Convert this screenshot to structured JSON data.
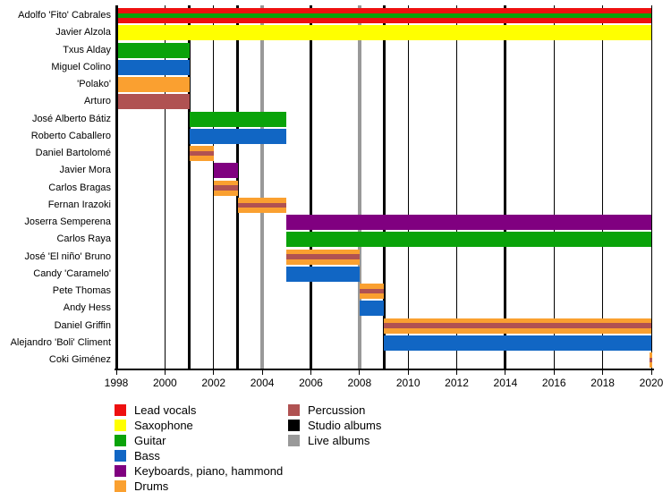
{
  "chart_data": {
    "type": "timeline-gantt",
    "description": "Band members timeline with album release markers",
    "x_axis": {
      "min_year": 1998,
      "max_year": 2020,
      "tick_years": [
        1998,
        2000,
        2002,
        2004,
        2006,
        2008,
        2010,
        2012,
        2014,
        2016,
        2018,
        2020
      ],
      "gridline_years": [
        2000,
        2002,
        2004,
        2006,
        2008,
        2010,
        2012,
        2014,
        2016,
        2018,
        2020
      ]
    },
    "rows": [
      {
        "label": "Adolfo 'Fito' Cabrales",
        "roles": [
          "Lead vocals",
          "Guitar"
        ],
        "bars": [
          {
            "start": 1998,
            "end": 2020,
            "color": "lead_vocals",
            "stripe": "guitar"
          }
        ]
      },
      {
        "label": "Javier Alzola",
        "roles": [
          "Saxophone"
        ],
        "bars": [
          {
            "start": 1998,
            "end": 2020,
            "color": "saxophone"
          }
        ]
      },
      {
        "label": "Txus Alday",
        "roles": [
          "Guitar"
        ],
        "bars": [
          {
            "start": 1998,
            "end": 2001,
            "color": "guitar"
          }
        ]
      },
      {
        "label": "Miguel Colino",
        "roles": [
          "Bass"
        ],
        "bars": [
          {
            "start": 1998,
            "end": 2001,
            "color": "bass"
          }
        ]
      },
      {
        "label": "'Polako'",
        "roles": [
          "Drums"
        ],
        "bars": [
          {
            "start": 1998,
            "end": 2001,
            "color": "drums"
          }
        ]
      },
      {
        "label": "Arturo",
        "roles": [
          "Percussion"
        ],
        "bars": [
          {
            "start": 1998,
            "end": 2001,
            "color": "percussion"
          }
        ]
      },
      {
        "label": "José Alberto Bátiz",
        "roles": [
          "Guitar"
        ],
        "bars": [
          {
            "start": 2001,
            "end": 2005,
            "color": "guitar"
          }
        ]
      },
      {
        "label": "Roberto Caballero",
        "roles": [
          "Bass"
        ],
        "bars": [
          {
            "start": 2001,
            "end": 2005,
            "color": "bass"
          }
        ]
      },
      {
        "label": "Daniel Bartolomé",
        "roles": [
          "Drums",
          "Percussion"
        ],
        "bars": [
          {
            "start": 2001,
            "end": 2002,
            "color": "drums",
            "stripe": "percussion"
          }
        ]
      },
      {
        "label": "Javier Mora",
        "roles": [
          "Keyboards, piano, hammond"
        ],
        "bars": [
          {
            "start": 2002,
            "end": 2003,
            "color": "keyboards"
          }
        ]
      },
      {
        "label": "Carlos Bragas",
        "roles": [
          "Drums",
          "Percussion"
        ],
        "bars": [
          {
            "start": 2002,
            "end": 2003,
            "color": "drums",
            "stripe": "percussion"
          }
        ]
      },
      {
        "label": "Fernan Irazoki",
        "roles": [
          "Drums",
          "Percussion"
        ],
        "bars": [
          {
            "start": 2003,
            "end": 2005,
            "color": "drums",
            "stripe": "percussion"
          }
        ]
      },
      {
        "label": "Joserra Semperena",
        "roles": [
          "Keyboards, piano, hammond"
        ],
        "bars": [
          {
            "start": 2005,
            "end": 2020,
            "color": "keyboards"
          }
        ]
      },
      {
        "label": "Carlos Raya",
        "roles": [
          "Guitar"
        ],
        "bars": [
          {
            "start": 2005,
            "end": 2020,
            "color": "guitar"
          }
        ]
      },
      {
        "label": "José 'El niño' Bruno",
        "roles": [
          "Drums",
          "Percussion"
        ],
        "bars": [
          {
            "start": 2005,
            "end": 2008,
            "color": "drums",
            "stripe": "percussion"
          }
        ]
      },
      {
        "label": "Candy 'Caramelo'",
        "roles": [
          "Bass"
        ],
        "bars": [
          {
            "start": 2005,
            "end": 2008,
            "color": "bass"
          }
        ]
      },
      {
        "label": "Pete Thomas",
        "roles": [
          "Drums",
          "Percussion"
        ],
        "bars": [
          {
            "start": 2008,
            "end": 2009,
            "color": "drums",
            "stripe": "percussion"
          }
        ]
      },
      {
        "label": "Andy Hess",
        "roles": [
          "Bass"
        ],
        "bars": [
          {
            "start": 2008,
            "end": 2009,
            "color": "bass"
          }
        ]
      },
      {
        "label": "Daniel Griffin",
        "roles": [
          "Drums",
          "Percussion"
        ],
        "bars": [
          {
            "start": 2009,
            "end": 2020,
            "color": "drums",
            "stripe": "percussion"
          }
        ]
      },
      {
        "label": "Alejandro 'Boli' Climent",
        "roles": [
          "Bass"
        ],
        "bars": [
          {
            "start": 2009,
            "end": 2020,
            "color": "bass"
          }
        ]
      },
      {
        "label": "Coki Giménez",
        "roles": [
          "Drums",
          "Percussion"
        ],
        "bars": [
          {
            "start": 2020,
            "end": 2020,
            "color": "drums",
            "stripe": "percussion"
          }
        ]
      }
    ],
    "events": {
      "studio_album_years": [
        1998,
        2001,
        2003,
        2006,
        2009,
        2014
      ],
      "live_album_years": [
        2004,
        2008
      ]
    },
    "legend_columns": [
      [
        {
          "label": "Lead vocals",
          "color": "lead_vocals"
        },
        {
          "label": "Saxophone",
          "color": "saxophone"
        },
        {
          "label": "Guitar",
          "color": "guitar"
        },
        {
          "label": "Bass",
          "color": "bass"
        },
        {
          "label": "Keyboards, piano, hammond",
          "color": "keyboards"
        },
        {
          "label": "Drums",
          "color": "drums"
        }
      ],
      [
        {
          "label": "Percussion",
          "color": "percussion"
        },
        {
          "label": "Studio albums",
          "color": "studio"
        },
        {
          "label": "Live albums",
          "color": "live"
        }
      ]
    ]
  },
  "palette": {
    "lead_vocals": "#ee1010",
    "saxophone": "#ffff00",
    "guitar": "#0aa30a",
    "bass": "#1166c4",
    "keyboards": "#800080",
    "drums": "#faa030",
    "percussion": "#b05252",
    "studio": "#000000",
    "live": "#999999"
  }
}
